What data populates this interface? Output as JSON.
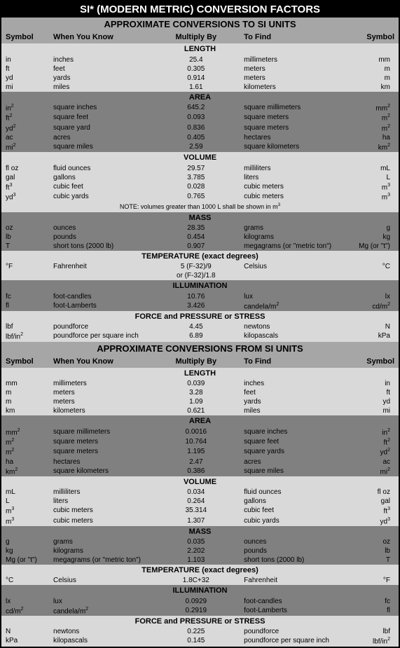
{
  "title": "SI* (MODERN METRIC) CONVERSION FACTORS",
  "colHeaders": {
    "sym1": "Symbol",
    "know": "When You Know",
    "mult": "Multiply By",
    "find": "To Find",
    "sym2": "Symbol"
  },
  "sections": [
    {
      "title": "APPROXIMATE CONVERSIONS TO SI UNITS",
      "groups": [
        {
          "name": "LENGTH",
          "bg": "bg-light",
          "rows": [
            [
              "in",
              "inches",
              "25.4",
              "millimeters",
              "mm"
            ],
            [
              "ft",
              "feet",
              "0.305",
              "meters",
              "m"
            ],
            [
              "yd",
              "yards",
              "0.914",
              "meters",
              "m"
            ],
            [
              "mi",
              "miles",
              "1.61",
              "kilometers",
              "km"
            ]
          ]
        },
        {
          "name": "AREA",
          "bg": "bg-dark",
          "rows": [
            [
              "in<sup>2</sup>",
              "square inches",
              "645.2",
              "square millimeters",
              "mm<sup>2</sup>"
            ],
            [
              "ft<sup>2</sup>",
              "square feet",
              "0.093",
              "square meters",
              "m<sup>2</sup>"
            ],
            [
              "yd<sup>2</sup>",
              "square yard",
              "0.836",
              "square meters",
              "m<sup>2</sup>"
            ],
            [
              "ac",
              "acres",
              "0.405",
              "hectares",
              "ha"
            ],
            [
              "mi<sup>2</sup>",
              "square miles",
              "2.59",
              "square kilometers",
              "km<sup>2</sup>"
            ]
          ]
        },
        {
          "name": "VOLUME",
          "bg": "bg-light",
          "rows": [
            [
              "fl oz",
              "fluid ounces",
              "29.57",
              "milliliters",
              "mL"
            ],
            [
              "gal",
              "gallons",
              "3.785",
              "liters",
              "L"
            ],
            [
              "ft<sup>3</sup>",
              "cubic feet",
              "0.028",
              "cubic meters",
              "m<sup>3</sup>"
            ],
            [
              "yd<sup>3</sup>",
              "cubic yards",
              "0.765",
              "cubic meters",
              "m<sup>3</sup>"
            ]
          ],
          "note": "NOTE: volumes greater than 1000 L shall be shown in m<sup>3</sup>"
        },
        {
          "name": "MASS",
          "bg": "bg-dark",
          "rows": [
            [
              "oz",
              "ounces",
              "28.35",
              "grams",
              "g"
            ],
            [
              "lb",
              "pounds",
              "0.454",
              "kilograms",
              "kg"
            ],
            [
              "T",
              "short tons (2000 lb)",
              "0.907",
              "megagrams (or \"metric ton\")",
              "Mg (or \"t\")"
            ]
          ]
        },
        {
          "name": "TEMPERATURE (exact degrees)",
          "bg": "bg-light",
          "rows": [
            [
              "°F",
              "Fahrenheit",
              "5 (F-32)/9",
              "Celsius",
              "°C"
            ],
            [
              "",
              "",
              "or (F-32)/1.8",
              "",
              ""
            ]
          ]
        },
        {
          "name": "ILLUMINATION",
          "bg": "bg-dark",
          "rows": [
            [
              "fc",
              "foot-candles",
              "10.76",
              "lux",
              "lx"
            ],
            [
              "fl",
              "foot-Lamberts",
              "3.426",
              "candela/m<sup>2</sup>",
              "cd/m<sup>2</sup>"
            ]
          ]
        },
        {
          "name": "FORCE and PRESSURE or STRESS",
          "bg": "bg-light",
          "rows": [
            [
              "lbf",
              "poundforce",
              "4.45",
              "newtons",
              "N"
            ],
            [
              "lbf/in<sup>2</sup>",
              "poundforce per square inch",
              "6.89",
              "kilopascals",
              "kPa"
            ]
          ]
        }
      ]
    },
    {
      "title": "APPROXIMATE CONVERSIONS FROM SI UNITS",
      "groups": [
        {
          "name": "LENGTH",
          "bg": "bg-light",
          "rows": [
            [
              "mm",
              "millimeters",
              "0.039",
              "inches",
              "in"
            ],
            [
              "m",
              "meters",
              "3.28",
              "feet",
              "ft"
            ],
            [
              "m",
              "meters",
              "1.09",
              "yards",
              "yd"
            ],
            [
              "km",
              "kilometers",
              "0.621",
              "miles",
              "mi"
            ]
          ]
        },
        {
          "name": "AREA",
          "bg": "bg-dark",
          "rows": [
            [
              "mm<sup>2</sup>",
              "square millimeters",
              "0.0016",
              "square inches",
              "in<sup>2</sup>"
            ],
            [
              "m<sup>2</sup>",
              "square meters",
              "10.764",
              "square feet",
              "ft<sup>2</sup>"
            ],
            [
              "m<sup>2</sup>",
              "square meters",
              "1.195",
              "square yards",
              "yd<sup>2</sup>"
            ],
            [
              "ha",
              "hectares",
              "2.47",
              "acres",
              "ac"
            ],
            [
              "km<sup>2</sup>",
              "square kilometers",
              "0.386",
              "square miles",
              "mi<sup>2</sup>"
            ]
          ]
        },
        {
          "name": "VOLUME",
          "bg": "bg-light",
          "rows": [
            [
              "mL",
              "milliliters",
              "0.034",
              "fluid ounces",
              "fl oz"
            ],
            [
              "L",
              "liters",
              "0.264",
              "gallons",
              "gal"
            ],
            [
              "m<sup>3</sup>",
              "cubic meters",
              "35.314",
              "cubic feet",
              "ft<sup>3</sup>"
            ],
            [
              "m<sup>3</sup>",
              "cubic meters",
              "1.307",
              "cubic yards",
              "yd<sup>3</sup>"
            ]
          ]
        },
        {
          "name": "MASS",
          "bg": "bg-dark",
          "rows": [
            [
              "g",
              "grams",
              "0.035",
              "ounces",
              "oz"
            ],
            [
              "kg",
              "kilograms",
              "2.202",
              "pounds",
              "lb"
            ],
            [
              "Mg (or \"t\")",
              "megagrams (or \"metric ton\")",
              "1.103",
              "short tons (2000 lb)",
              "T"
            ]
          ]
        },
        {
          "name": "TEMPERATURE (exact degrees)",
          "bg": "bg-light",
          "rows": [
            [
              "°C",
              "Celsius",
              "1.8C+32",
              "Fahrenheit",
              "°F"
            ]
          ]
        },
        {
          "name": "ILLUMINATION",
          "bg": "bg-dark",
          "rows": [
            [
              "lx",
              "lux",
              "0.0929",
              "foot-candles",
              "fc"
            ],
            [
              "cd/m<sup>2</sup>",
              "candela/m<sup>2</sup>",
              "0.2919",
              "foot-Lamberts",
              "fl"
            ]
          ]
        },
        {
          "name": "FORCE and PRESSURE or STRESS",
          "bg": "bg-light",
          "rows": [
            [
              "N",
              "newtons",
              "0.225",
              "poundforce",
              "lbf"
            ],
            [
              "kPa",
              "kilopascals",
              "0.145",
              "poundforce per square inch",
              "lbf/in<sup>2</sup>"
            ]
          ]
        }
      ]
    }
  ]
}
